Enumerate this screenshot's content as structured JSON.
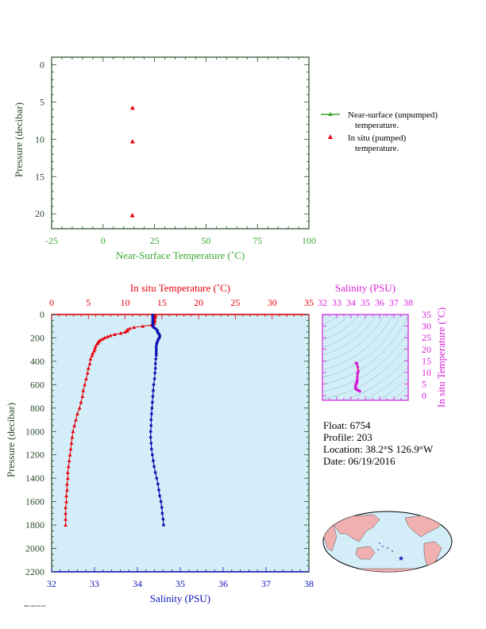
{
  "colors": {
    "green": "#3aa935",
    "red": "#e8000b",
    "blue": "#1014b4",
    "magenta": "#d61fd6",
    "panel_bg": "#d3eef8",
    "axis_dark": "#2b4a2b",
    "land": "#f0b0b0",
    "ocean": "#d3eef8"
  },
  "float_info": {
    "float": "Float:  6754",
    "profile": "Profile:  203",
    "location": "Location:  38.2°S  126.9°W",
    "date": "Date:  06/19/2016"
  },
  "footer_note": "PMEL ARGO FLOAT",
  "chart_data": [
    {
      "type": "scatter",
      "ylabel": "Pressure (decibar)",
      "xlabel": "Near-Surface Temperature (˚C)",
      "xlim": [
        -25,
        100
      ],
      "ylim": [
        22,
        -1
      ],
      "x_ticks": [
        "-25",
        "0",
        "25",
        "50",
        "75",
        "100"
      ],
      "y_ticks": [
        "0",
        "5",
        "10",
        "15",
        "20"
      ],
      "x_tick_values": [
        -25,
        0,
        25,
        50,
        75,
        100
      ],
      "y_tick_values": [
        0,
        5,
        10,
        15,
        20
      ],
      "legend": [
        {
          "label": "Near-surface (unpumped)",
          "label2": "temperature.",
          "marker": "line-triangle",
          "color": "#3aa935"
        },
        {
          "label": "In situ (pumped)",
          "label2": "temperature.",
          "marker": "triangle",
          "color": "#e8000b"
        }
      ],
      "legend_position": "right",
      "series": [
        {
          "name": "In situ (pumped) temperature.",
          "x": [
            14.3,
            14.3,
            14.2
          ],
          "y": [
            5.8,
            10.3,
            20.2
          ]
        }
      ]
    },
    {
      "type": "line",
      "ylabel": "Pressure (decibar)",
      "top_label": "In situ Temperature (˚C)",
      "xlabel": "Salinity (PSU)",
      "temp_lim": [
        0,
        35
      ],
      "sal_lim": [
        32,
        38
      ],
      "ylim": [
        2200,
        0
      ],
      "temp_ticks": [
        "0",
        "5",
        "10",
        "15",
        "20",
        "25",
        "30",
        "35"
      ],
      "temp_tick_values": [
        0,
        5,
        10,
        15,
        20,
        25,
        30,
        35
      ],
      "sal_ticks": [
        "32",
        "33",
        "34",
        "35",
        "36",
        "37",
        "38"
      ],
      "sal_tick_values": [
        32,
        33,
        34,
        35,
        36,
        37,
        38
      ],
      "y_ticks": [
        "0",
        "200",
        "400",
        "600",
        "800",
        "1000",
        "1200",
        "1400",
        "1600",
        "1800",
        "2000",
        "2200"
      ],
      "y_tick_values": [
        0,
        200,
        400,
        600,
        800,
        1000,
        1200,
        1400,
        1600,
        1800,
        2000,
        2200
      ],
      "temperature": {
        "pressure": [
          5,
          10,
          20,
          30,
          40,
          50,
          60,
          70,
          80,
          90,
          100,
          110,
          120,
          130,
          140,
          150,
          160,
          170,
          180,
          190,
          200,
          210,
          220,
          230,
          240,
          250,
          270,
          290,
          310,
          330,
          350,
          380,
          420,
          460,
          500,
          550,
          600,
          650,
          700,
          750,
          800,
          850,
          900,
          950,
          1000,
          1050,
          1100,
          1150,
          1200,
          1250,
          1300,
          1350,
          1400,
          1450,
          1500,
          1550,
          1600,
          1650,
          1700,
          1750,
          1800
        ],
        "value": [
          14.1,
          14.1,
          14.1,
          14.0,
          14.0,
          14.0,
          14.0,
          13.9,
          13.9,
          13.6,
          12.4,
          11.2,
          10.6,
          10.3,
          10.3,
          10.0,
          9.4,
          8.6,
          8.0,
          7.6,
          7.2,
          6.9,
          6.6,
          6.4,
          6.3,
          6.2,
          6.0,
          5.9,
          5.8,
          5.6,
          5.5,
          5.3,
          5.2,
          5.0,
          4.9,
          4.7,
          4.5,
          4.3,
          4.2,
          4.0,
          3.8,
          3.5,
          3.3,
          3.1,
          2.9,
          2.8,
          2.7,
          2.6,
          2.5,
          2.4,
          2.3,
          2.2,
          2.2,
          2.1,
          2.1,
          2.0,
          2.0,
          1.9,
          1.9,
          1.9,
          1.9
        ]
      },
      "salinity": {
        "pressure": [
          5,
          10,
          20,
          30,
          40,
          50,
          60,
          70,
          80,
          90,
          100,
          110,
          120,
          130,
          140,
          150,
          160,
          170,
          180,
          190,
          200,
          210,
          220,
          230,
          240,
          250,
          270,
          290,
          310,
          330,
          350,
          380,
          420,
          460,
          500,
          550,
          600,
          650,
          700,
          750,
          800,
          850,
          900,
          950,
          1000,
          1050,
          1100,
          1150,
          1200,
          1250,
          1300,
          1350,
          1400,
          1450,
          1500,
          1550,
          1600,
          1650,
          1700,
          1750,
          1800
        ],
        "value": [
          34.36,
          34.36,
          34.36,
          34.36,
          34.36,
          34.36,
          34.36,
          34.36,
          34.36,
          34.36,
          34.36,
          34.38,
          34.42,
          34.45,
          34.47,
          34.47,
          34.49,
          34.51,
          34.52,
          34.52,
          34.51,
          34.49,
          34.48,
          34.47,
          34.46,
          34.45,
          34.44,
          34.44,
          34.44,
          34.44,
          34.44,
          34.43,
          34.42,
          34.42,
          34.41,
          34.4,
          34.38,
          34.37,
          34.36,
          34.35,
          34.34,
          34.33,
          34.32,
          34.32,
          34.31,
          34.31,
          34.32,
          34.33,
          34.35,
          34.37,
          34.39,
          34.42,
          34.45,
          34.48,
          34.5,
          34.52,
          34.55,
          34.57,
          34.58,
          34.6,
          34.61
        ]
      }
    },
    {
      "type": "scatter",
      "title": "Salinity (PSU)",
      "ylabel": "In situ Temperature (˚C)",
      "xlim": [
        32,
        38
      ],
      "ylim": [
        -2,
        35
      ],
      "x_ticks": [
        "32",
        "33",
        "34",
        "35",
        "36",
        "37",
        "38"
      ],
      "x_tick_values": [
        32,
        33,
        34,
        35,
        36,
        37,
        38
      ],
      "y_ticks": [
        "0",
        "5",
        "10",
        "15",
        "20",
        "25",
        "30",
        "35"
      ],
      "y_tick_values": [
        0,
        5,
        10,
        15,
        20,
        25,
        30,
        35
      ],
      "series": [
        {
          "name": "T-S",
          "x": [
            34.36,
            34.36,
            34.4,
            34.47,
            34.51,
            34.49,
            34.46,
            34.44,
            34.44,
            34.43,
            34.42,
            34.41,
            34.4,
            34.37,
            34.35,
            34.33,
            34.32,
            34.31,
            34.32,
            34.35,
            34.39,
            34.45,
            34.5,
            34.55,
            34.58,
            34.61
          ],
          "y": [
            14.1,
            14.0,
            13.9,
            12.4,
            10.6,
            10.3,
            9.4,
            8.0,
            6.9,
            6.3,
            6.0,
            5.8,
            5.5,
            5.2,
            4.9,
            4.5,
            4.2,
            3.8,
            3.3,
            2.9,
            2.7,
            2.5,
            2.3,
            2.2,
            2.1,
            1.9
          ]
        }
      ]
    }
  ]
}
